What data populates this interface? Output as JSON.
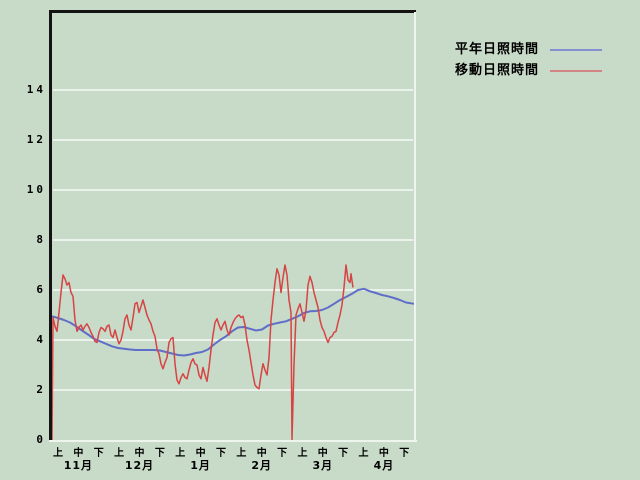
{
  "colors": {
    "background": "#c8dac8",
    "gridline": "#ebf2eb",
    "border_dark": "#131313",
    "border_light": "#eef4ee",
    "axis_text": "#000000",
    "series_normal": "#5f6ec8",
    "series_moving": "#d64444",
    "legend_normal": "#8590d2",
    "legend_moving": "#d28585"
  },
  "legend": {
    "items": [
      {
        "id": "normal",
        "label": "平年日照時間"
      },
      {
        "id": "moving",
        "label": "移動日照時間"
      }
    ]
  },
  "chart_data": {
    "type": "line",
    "title": "",
    "grid": true,
    "legend_position": "top-right",
    "y_axis": {
      "ticks": [
        0,
        2,
        4,
        6,
        8,
        10,
        12,
        14
      ],
      "range": [
        0,
        17.2
      ],
      "unit": "hours"
    },
    "x_axis": {
      "months": [
        "11月",
        "12月",
        "1月",
        "2月",
        "3月",
        "4月"
      ],
      "periods": [
        "上",
        "中",
        "下"
      ],
      "note": "x values of series points are screen-x positions; axis spans 11月上 through 4月下"
    },
    "series": [
      {
        "name": "平年日照時間",
        "color_key": "series_normal",
        "width": 2,
        "points": [
          [
            52,
            4.95
          ],
          [
            58,
            4.88
          ],
          [
            64,
            4.8
          ],
          [
            70,
            4.7
          ],
          [
            76,
            4.55
          ],
          [
            82,
            4.38
          ],
          [
            88,
            4.22
          ],
          [
            94,
            4.05
          ],
          [
            100,
            3.95
          ],
          [
            106,
            3.85
          ],
          [
            112,
            3.75
          ],
          [
            118,
            3.68
          ],
          [
            124,
            3.65
          ],
          [
            130,
            3.62
          ],
          [
            136,
            3.6
          ],
          [
            142,
            3.6
          ],
          [
            148,
            3.6
          ],
          [
            154,
            3.6
          ],
          [
            160,
            3.58
          ],
          [
            166,
            3.52
          ],
          [
            172,
            3.46
          ],
          [
            178,
            3.4
          ],
          [
            184,
            3.38
          ],
          [
            190,
            3.42
          ],
          [
            196,
            3.48
          ],
          [
            202,
            3.52
          ],
          [
            208,
            3.62
          ],
          [
            214,
            3.82
          ],
          [
            220,
            4.0
          ],
          [
            226,
            4.15
          ],
          [
            232,
            4.35
          ],
          [
            238,
            4.5
          ],
          [
            244,
            4.52
          ],
          [
            250,
            4.45
          ],
          [
            256,
            4.38
          ],
          [
            262,
            4.42
          ],
          [
            268,
            4.58
          ],
          [
            274,
            4.65
          ],
          [
            280,
            4.7
          ],
          [
            286,
            4.75
          ],
          [
            292,
            4.85
          ],
          [
            298,
            4.95
          ],
          [
            304,
            5.08
          ],
          [
            310,
            5.15
          ],
          [
            316,
            5.16
          ],
          [
            322,
            5.2
          ],
          [
            328,
            5.3
          ],
          [
            334,
            5.45
          ],
          [
            340,
            5.6
          ],
          [
            346,
            5.72
          ],
          [
            352,
            5.85
          ],
          [
            358,
            6.0
          ],
          [
            364,
            6.05
          ],
          [
            370,
            5.95
          ],
          [
            376,
            5.88
          ],
          [
            382,
            5.8
          ],
          [
            388,
            5.75
          ],
          [
            394,
            5.68
          ],
          [
            400,
            5.6
          ],
          [
            406,
            5.5
          ],
          [
            414,
            5.45
          ]
        ]
      },
      {
        "name": "移動日照時間",
        "color_key": "series_moving",
        "width": 1.5,
        "points": [
          [
            52,
            0
          ],
          [
            53,
            4.9
          ],
          [
            55,
            4.55
          ],
          [
            57,
            4.35
          ],
          [
            59,
            5.1
          ],
          [
            61,
            5.9
          ],
          [
            63,
            6.6
          ],
          [
            65,
            6.45
          ],
          [
            67,
            6.2
          ],
          [
            69,
            6.3
          ],
          [
            71,
            5.9
          ],
          [
            73,
            5.75
          ],
          [
            75,
            4.8
          ],
          [
            77,
            4.35
          ],
          [
            79,
            4.5
          ],
          [
            81,
            4.6
          ],
          [
            83,
            4.4
          ],
          [
            85,
            4.55
          ],
          [
            87,
            4.65
          ],
          [
            89,
            4.5
          ],
          [
            91,
            4.3
          ],
          [
            93,
            4.15
          ],
          [
            95,
            3.95
          ],
          [
            97,
            3.9
          ],
          [
            99,
            4.3
          ],
          [
            101,
            4.5
          ],
          [
            103,
            4.45
          ],
          [
            105,
            4.35
          ],
          [
            107,
            4.55
          ],
          [
            109,
            4.6
          ],
          [
            111,
            4.2
          ],
          [
            113,
            4.1
          ],
          [
            115,
            4.4
          ],
          [
            117,
            4.1
          ],
          [
            119,
            3.85
          ],
          [
            121,
            4.0
          ],
          [
            123,
            4.35
          ],
          [
            125,
            4.85
          ],
          [
            127,
            5.0
          ],
          [
            129,
            4.6
          ],
          [
            131,
            4.4
          ],
          [
            133,
            4.9
          ],
          [
            135,
            5.45
          ],
          [
            137,
            5.5
          ],
          [
            139,
            5.1
          ],
          [
            141,
            5.35
          ],
          [
            143,
            5.6
          ],
          [
            145,
            5.3
          ],
          [
            147,
            5.0
          ],
          [
            149,
            4.8
          ],
          [
            151,
            4.65
          ],
          [
            153,
            4.35
          ],
          [
            155,
            4.15
          ],
          [
            157,
            3.65
          ],
          [
            159,
            3.45
          ],
          [
            161,
            3.05
          ],
          [
            163,
            2.85
          ],
          [
            165,
            3.1
          ],
          [
            167,
            3.3
          ],
          [
            169,
            3.9
          ],
          [
            171,
            4.05
          ],
          [
            173,
            4.1
          ],
          [
            175,
            3.05
          ],
          [
            177,
            2.4
          ],
          [
            179,
            2.25
          ],
          [
            181,
            2.5
          ],
          [
            183,
            2.65
          ],
          [
            185,
            2.5
          ],
          [
            187,
            2.45
          ],
          [
            189,
            2.8
          ],
          [
            191,
            3.1
          ],
          [
            193,
            3.25
          ],
          [
            195,
            3.05
          ],
          [
            197,
            3.0
          ],
          [
            199,
            2.6
          ],
          [
            201,
            2.45
          ],
          [
            203,
            2.9
          ],
          [
            205,
            2.6
          ],
          [
            207,
            2.35
          ],
          [
            209,
            2.9
          ],
          [
            211,
            3.6
          ],
          [
            213,
            4.2
          ],
          [
            215,
            4.7
          ],
          [
            217,
            4.85
          ],
          [
            219,
            4.6
          ],
          [
            221,
            4.4
          ],
          [
            223,
            4.6
          ],
          [
            225,
            4.75
          ],
          [
            227,
            4.4
          ],
          [
            229,
            4.2
          ],
          [
            231,
            4.5
          ],
          [
            233,
            4.7
          ],
          [
            235,
            4.85
          ],
          [
            237,
            4.95
          ],
          [
            239,
            5.0
          ],
          [
            241,
            4.9
          ],
          [
            243,
            4.95
          ],
          [
            245,
            4.6
          ],
          [
            247,
            4.0
          ],
          [
            249,
            3.6
          ],
          [
            251,
            3.1
          ],
          [
            253,
            2.6
          ],
          [
            255,
            2.2
          ],
          [
            257,
            2.1
          ],
          [
            259,
            2.05
          ],
          [
            261,
            2.6
          ],
          [
            263,
            3.05
          ],
          [
            265,
            2.8
          ],
          [
            267,
            2.6
          ],
          [
            269,
            3.3
          ],
          [
            271,
            4.8
          ],
          [
            273,
            5.6
          ],
          [
            275,
            6.3
          ],
          [
            277,
            6.85
          ],
          [
            279,
            6.6
          ],
          [
            281,
            5.9
          ],
          [
            283,
            6.5
          ],
          [
            285,
            7.0
          ],
          [
            287,
            6.6
          ],
          [
            289,
            5.6
          ],
          [
            291,
            5.1
          ],
          [
            292,
            0
          ],
          [
            294,
            3.0
          ],
          [
            296,
            5.0
          ],
          [
            298,
            5.25
          ],
          [
            300,
            5.45
          ],
          [
            302,
            5.1
          ],
          [
            304,
            4.75
          ],
          [
            306,
            5.2
          ],
          [
            308,
            6.2
          ],
          [
            310,
            6.55
          ],
          [
            312,
            6.3
          ],
          [
            314,
            5.9
          ],
          [
            316,
            5.6
          ],
          [
            318,
            5.3
          ],
          [
            320,
            4.8
          ],
          [
            322,
            4.5
          ],
          [
            324,
            4.35
          ],
          [
            326,
            4.1
          ],
          [
            328,
            3.9
          ],
          [
            330,
            4.1
          ],
          [
            332,
            4.15
          ],
          [
            334,
            4.3
          ],
          [
            336,
            4.35
          ],
          [
            338,
            4.7
          ],
          [
            340,
            5.0
          ],
          [
            342,
            5.4
          ],
          [
            344,
            6.1
          ],
          [
            346,
            7.0
          ],
          [
            348,
            6.4
          ],
          [
            350,
            6.3
          ],
          [
            351,
            6.65
          ],
          [
            353,
            6.1
          ]
        ]
      }
    ]
  }
}
